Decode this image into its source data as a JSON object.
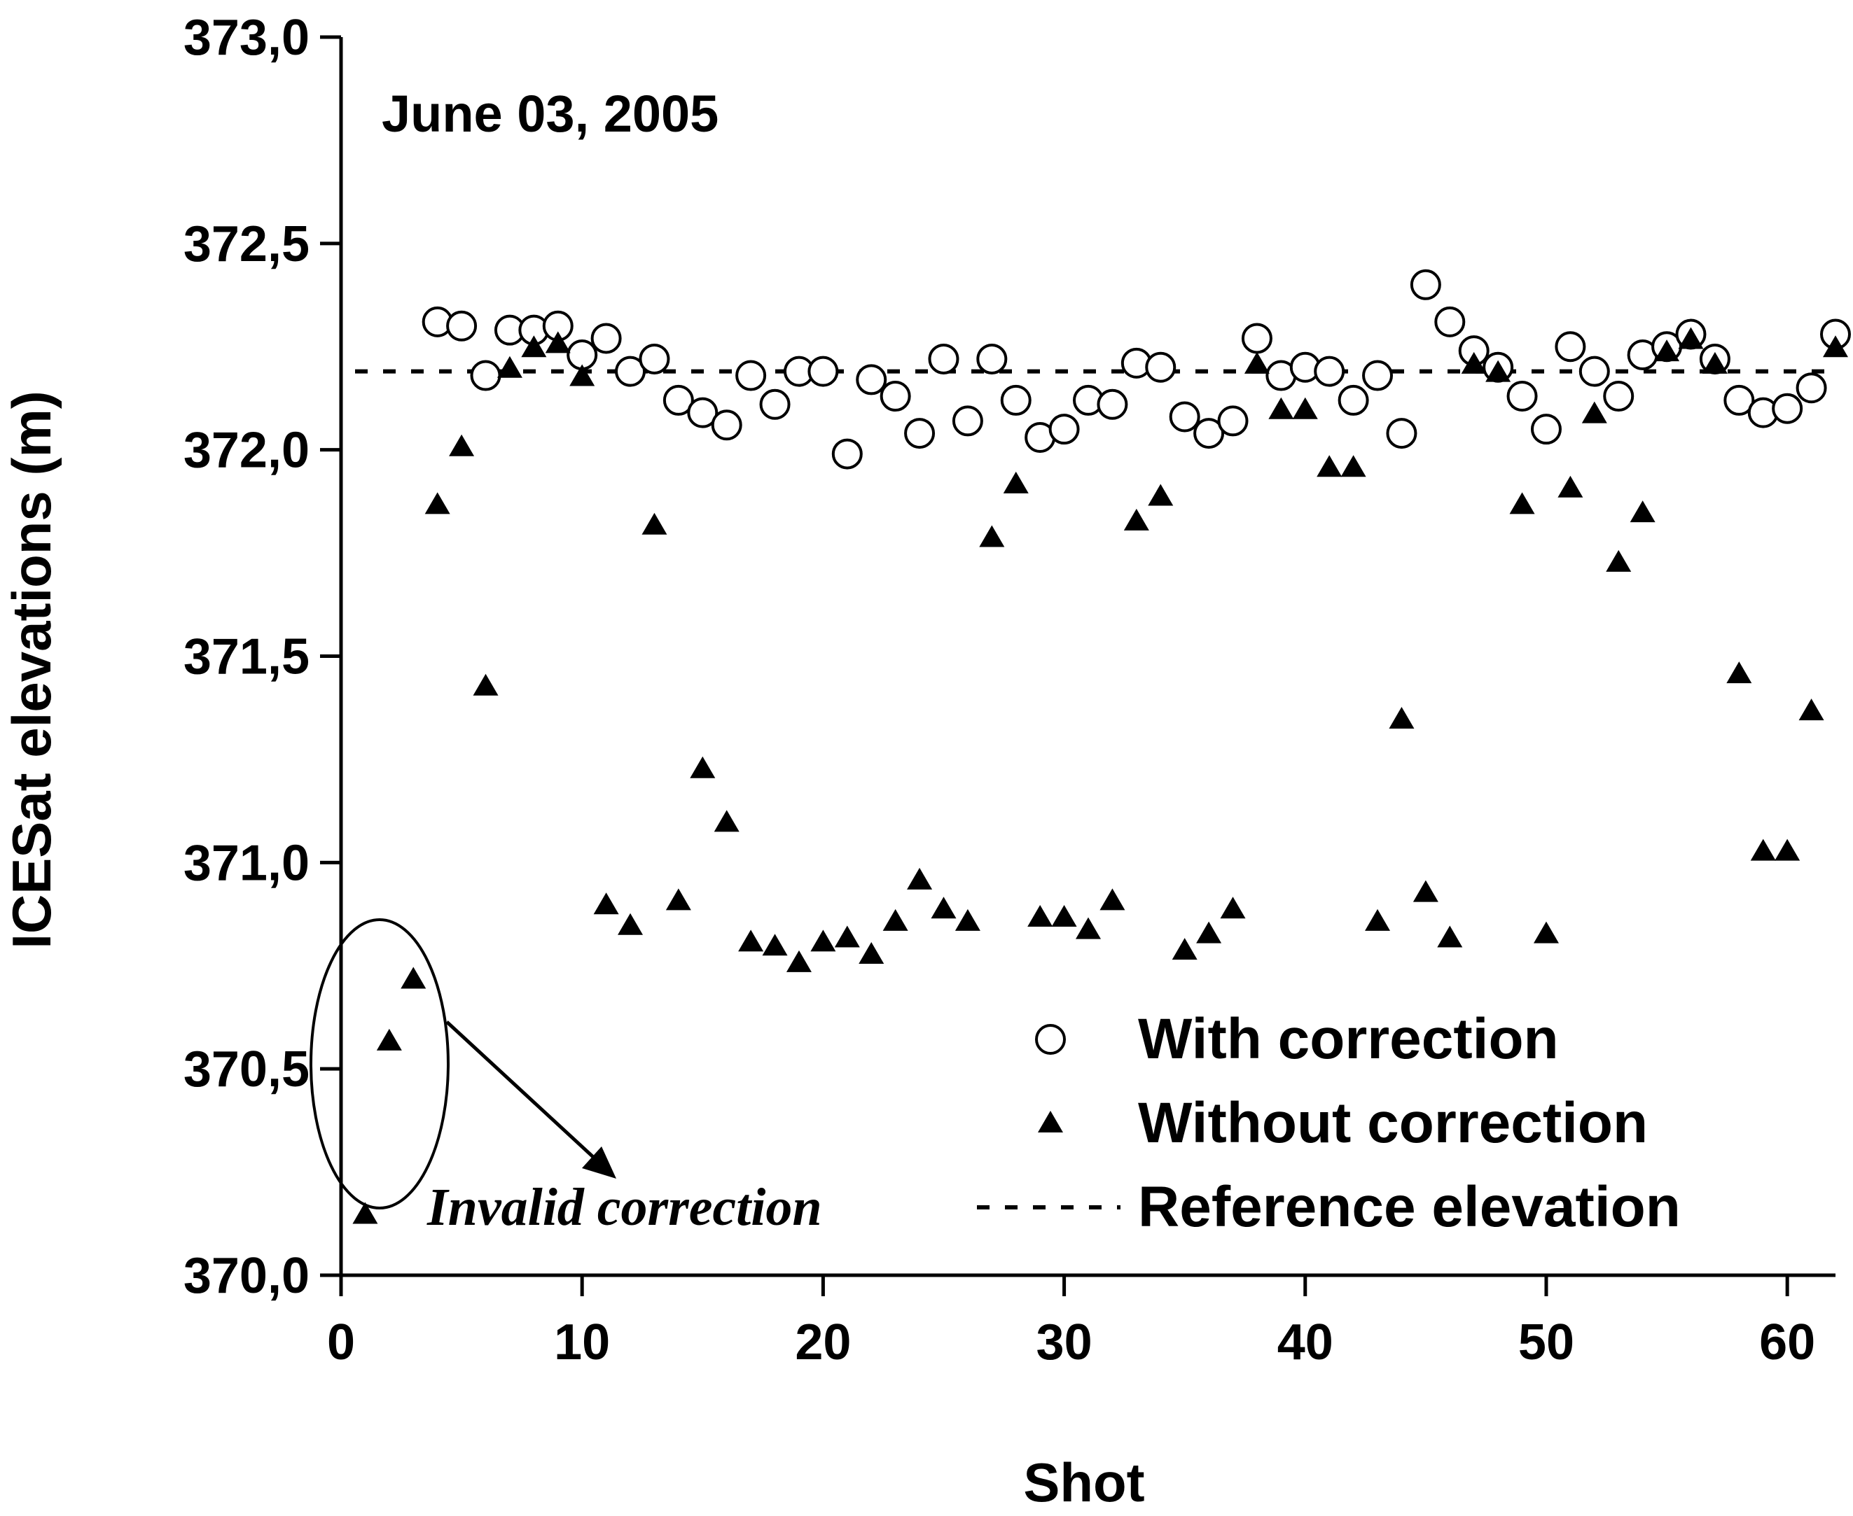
{
  "chart_data": {
    "type": "scatter",
    "title": "June 03, 2005",
    "xlabel": "Shot",
    "ylabel": "ICESat elevations (m)",
    "xlim": [
      0,
      62
    ],
    "ylim": [
      370.0,
      373.0
    ],
    "x_ticks": [
      0,
      10,
      20,
      30,
      40,
      50,
      60
    ],
    "x_tick_labels": [
      "0",
      "10",
      "20",
      "30",
      "40",
      "50",
      "60"
    ],
    "y_ticks": [
      370.0,
      370.5,
      371.0,
      371.5,
      372.0,
      372.5,
      373.0
    ],
    "y_tick_labels": [
      "370,0",
      "370,5",
      "371,0",
      "371,5",
      "372,0",
      "372,5",
      "373,0"
    ],
    "reference_elevation": 372.19,
    "legend_position": "bottom-right",
    "series": [
      {
        "name": "With correction",
        "marker": "circle",
        "x": [
          4,
          5,
          6,
          7,
          8,
          9,
          10,
          11,
          12,
          13,
          14,
          15,
          16,
          17,
          18,
          19,
          20,
          21,
          22,
          23,
          24,
          25,
          26,
          27,
          28,
          29,
          30,
          31,
          32,
          33,
          34,
          35,
          36,
          37,
          38,
          39,
          40,
          41,
          42,
          43,
          44,
          45,
          46,
          47,
          48,
          49,
          50,
          51,
          52,
          53,
          54,
          55,
          56,
          57,
          58,
          59,
          60,
          61,
          62
        ],
        "y": [
          372.31,
          372.3,
          372.18,
          372.29,
          372.29,
          372.3,
          372.23,
          372.27,
          372.19,
          372.22,
          372.12,
          372.09,
          372.06,
          372.18,
          372.11,
          372.19,
          372.19,
          371.99,
          372.17,
          372.13,
          372.04,
          372.22,
          372.07,
          372.22,
          372.12,
          372.03,
          372.05,
          372.12,
          372.11,
          372.21,
          372.2,
          372.08,
          372.04,
          372.07,
          372.27,
          372.18,
          372.2,
          372.19,
          372.12,
          372.18,
          372.04,
          372.4,
          372.31,
          372.24,
          372.2,
          372.13,
          372.05,
          372.25,
          372.19,
          372.13,
          372.23,
          372.25,
          372.28,
          372.22,
          372.12,
          372.09,
          372.1,
          372.15,
          372.28
        ]
      },
      {
        "name": "Without correction",
        "marker": "triangle",
        "x": [
          1,
          2,
          3,
          4,
          5,
          6,
          7,
          8,
          9,
          10,
          11,
          12,
          13,
          14,
          15,
          16,
          17,
          18,
          19,
          20,
          21,
          22,
          23,
          24,
          25,
          26,
          27,
          28,
          29,
          30,
          31,
          32,
          33,
          34,
          35,
          36,
          37,
          38,
          39,
          40,
          41,
          42,
          43,
          44,
          45,
          46,
          47,
          48,
          49,
          50,
          51,
          52,
          53,
          54,
          55,
          56,
          57,
          58,
          59,
          60,
          61,
          62
        ],
        "y": [
          370.15,
          370.57,
          370.72,
          371.87,
          372.01,
          371.43,
          372.2,
          372.25,
          372.26,
          372.18,
          370.9,
          370.85,
          371.82,
          370.91,
          371.23,
          371.1,
          370.81,
          370.8,
          370.76,
          370.81,
          370.82,
          370.78,
          370.86,
          370.96,
          370.89,
          370.86,
          371.79,
          371.92,
          370.87,
          370.87,
          370.84,
          370.91,
          371.83,
          371.89,
          370.79,
          370.83,
          370.89,
          372.21,
          372.1,
          372.1,
          371.96,
          371.96,
          370.86,
          371.35,
          370.93,
          370.82,
          372.21,
          372.19,
          371.87,
          370.83,
          371.91,
          372.09,
          371.73,
          371.85,
          372.24,
          372.27,
          372.21,
          371.46,
          371.03,
          371.03,
          371.37,
          372.25
        ]
      },
      {
        "name": "Reference elevation",
        "marker": "dashed-line"
      }
    ],
    "annotation": {
      "text": "Invalid correction",
      "target_x": [
        1,
        2,
        3
      ]
    }
  }
}
